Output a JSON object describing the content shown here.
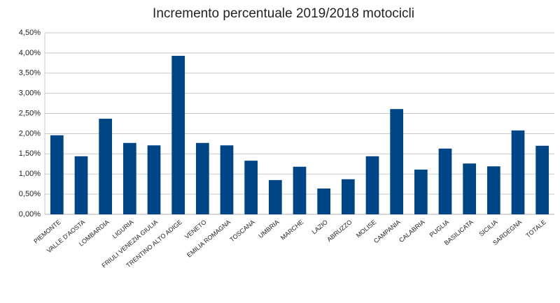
{
  "chart_data": {
    "type": "bar",
    "title": "Incremento percentuale 2019/2018 motocicli",
    "categories": [
      "PIEMONTE",
      "VALLE D'AOSTA",
      "LOMBARDIA",
      "LIGURIA",
      "FRIULI VENEZIA GIULIA",
      "TRENTINO ALTO ADIGE",
      "VENETO",
      "EMILIA ROMAGNA",
      "TOSCANA",
      "UMBRIA",
      "MARCHE",
      "LAZIO",
      "ABRUZZO",
      "MOLISE",
      "CAMPANIA",
      "CALABRIA",
      "PUGLIA",
      "BASILICATA",
      "SICILIA",
      "SARDEGNA",
      "TOTALE"
    ],
    "values": [
      1.96,
      1.44,
      2.37,
      1.77,
      1.71,
      3.93,
      1.77,
      1.71,
      1.33,
      0.85,
      1.18,
      0.64,
      0.87,
      1.44,
      2.61,
      1.11,
      1.63,
      1.26,
      1.19,
      2.08,
      1.7
    ],
    "color": "#004586",
    "ylim": [
      0,
      4.5
    ],
    "yticks": [
      {
        "value": 0,
        "label": "0,00%"
      },
      {
        "value": 0.5,
        "label": "0,50%"
      },
      {
        "value": 1,
        "label": "1,00%"
      },
      {
        "value": 1.5,
        "label": "1,50%"
      },
      {
        "value": 2,
        "label": "2,00%"
      },
      {
        "value": 2.5,
        "label": "2,50%"
      },
      {
        "value": 3,
        "label": "3,00%"
      },
      {
        "value": 3.5,
        "label": "3,50%"
      },
      {
        "value": 4,
        "label": "4,00%"
      },
      {
        "value": 4.5,
        "label": "4,50%"
      }
    ],
    "grid": true
  }
}
